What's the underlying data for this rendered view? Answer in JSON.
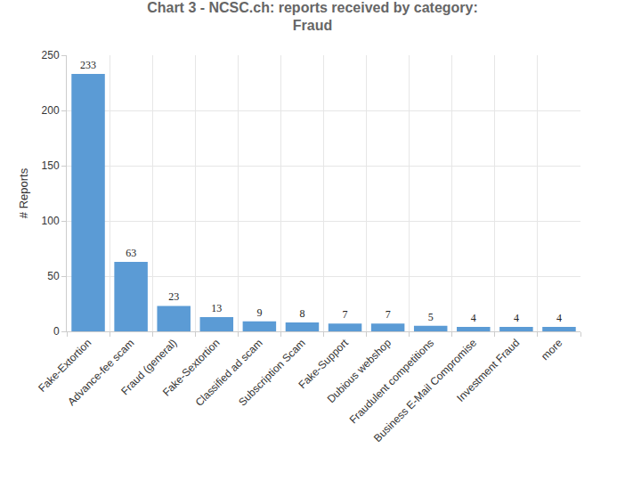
{
  "chart_data": {
    "type": "bar",
    "title": "Chart 3 - NCSC.ch: reports received by category: Fraud",
    "y_label": "# Reports",
    "categories": [
      "Fake-Extortion",
      "Advance-fee scam",
      "Fraud (general)",
      "Fake-Sextortion",
      "Classified ad scam",
      "Subscription Scam",
      "Fake-Support",
      "Dubious webshop",
      "Fraudulent competitions",
      "Business E-Mail Compromise",
      "Investment Fraud",
      "more"
    ],
    "values": [
      233,
      63,
      23,
      13,
      9,
      8,
      7,
      7,
      5,
      4,
      4,
      4
    ],
    "color": "#5b9bd5",
    "ylim": [
      0,
      250
    ],
    "yticks": [
      0,
      50,
      100,
      150,
      200,
      250
    ],
    "grid": true,
    "data_labels": true
  }
}
